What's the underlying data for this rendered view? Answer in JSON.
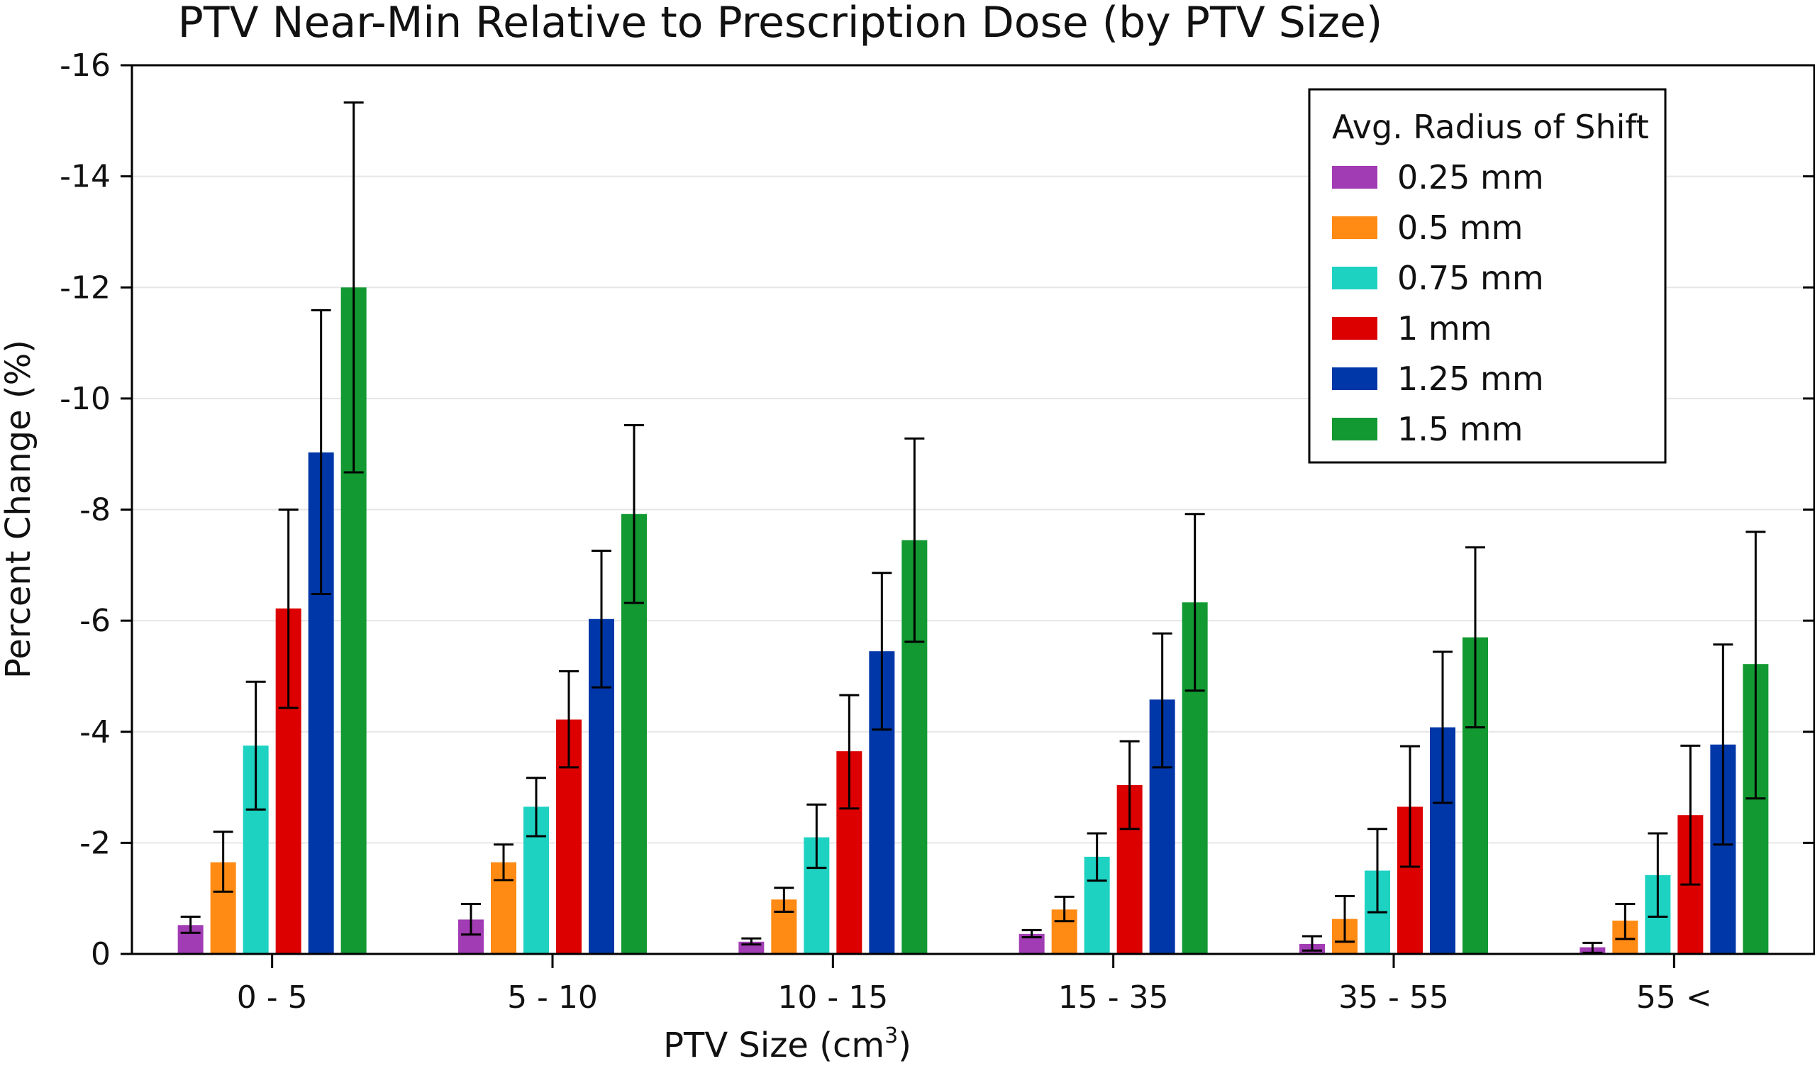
{
  "chart_data": {
    "type": "bar",
    "title": "PTV Near-Min Relative to Prescription Dose (by PTV Size)",
    "xlabel": "PTV Size (cm",
    "xlabel_superscript": "3",
    "xlabel_suffix": ")",
    "ylabel": "Percent Change (%)",
    "ylim": [
      0,
      -16
    ],
    "yticks": [
      0,
      -2,
      -4,
      -6,
      -8,
      -10,
      -12,
      -14,
      -16
    ],
    "categories": [
      "0 - 5",
      "5 - 10",
      "10 - 15",
      "15 - 35",
      "35 - 55",
      "55 <"
    ],
    "legend_title": "Avg. Radius of Shift",
    "legend_position": "top-right",
    "grid": true,
    "series": [
      {
        "name": "0.25 mm",
        "color": "#a23cb4",
        "values": [
          -0.52,
          -0.62,
          -0.22,
          -0.36,
          -0.18,
          -0.12
        ],
        "err_low": [
          -0.38,
          -0.35,
          -0.17,
          -0.3,
          -0.06,
          -0.02
        ],
        "err_high": [
          -0.67,
          -0.9,
          -0.28,
          -0.43,
          -0.32,
          -0.2
        ]
      },
      {
        "name": "0.5 mm",
        "color": "#ff8a14",
        "values": [
          -1.65,
          -1.65,
          -0.98,
          -0.8,
          -0.63,
          -0.6
        ],
        "err_low": [
          -1.12,
          -1.33,
          -0.76,
          -0.59,
          -0.22,
          -0.27
        ],
        "err_high": [
          -2.2,
          -1.97,
          -1.19,
          -1.03,
          -1.04,
          -0.9
        ]
      },
      {
        "name": "0.75 mm",
        "color": "#1ed2c2",
        "values": [
          -3.75,
          -2.65,
          -2.1,
          -1.75,
          -1.5,
          -1.42
        ],
        "err_low": [
          -2.6,
          -2.12,
          -1.55,
          -1.32,
          -0.75,
          -0.67
        ],
        "err_high": [
          -4.9,
          -3.17,
          -2.69,
          -2.17,
          -2.25,
          -2.17
        ]
      },
      {
        "name": "1 mm",
        "color": "#dd0000",
        "values": [
          -6.22,
          -4.22,
          -3.65,
          -3.04,
          -2.65,
          -2.5
        ],
        "err_low": [
          -4.43,
          -3.36,
          -2.62,
          -2.25,
          -1.57,
          -1.25
        ],
        "err_high": [
          -8.0,
          -5.09,
          -4.66,
          -3.83,
          -3.74,
          -3.75
        ]
      },
      {
        "name": "1.25 mm",
        "color": "#0037a8",
        "values": [
          -9.03,
          -6.03,
          -5.45,
          -4.58,
          -4.08,
          -3.77
        ],
        "err_low": [
          -6.48,
          -4.8,
          -4.04,
          -3.36,
          -2.72,
          -1.97
        ],
        "err_high": [
          -11.59,
          -7.26,
          -6.86,
          -5.77,
          -5.44,
          -5.57
        ]
      },
      {
        "name": "1.5 mm",
        "color": "#129932",
        "values": [
          -12.0,
          -7.92,
          -7.45,
          -6.33,
          -5.7,
          -5.22
        ],
        "err_low": [
          -8.67,
          -6.32,
          -5.62,
          -4.74,
          -4.08,
          -2.8
        ],
        "err_high": [
          -15.33,
          -9.52,
          -9.28,
          -7.92,
          -7.32,
          -7.6
        ]
      }
    ]
  }
}
